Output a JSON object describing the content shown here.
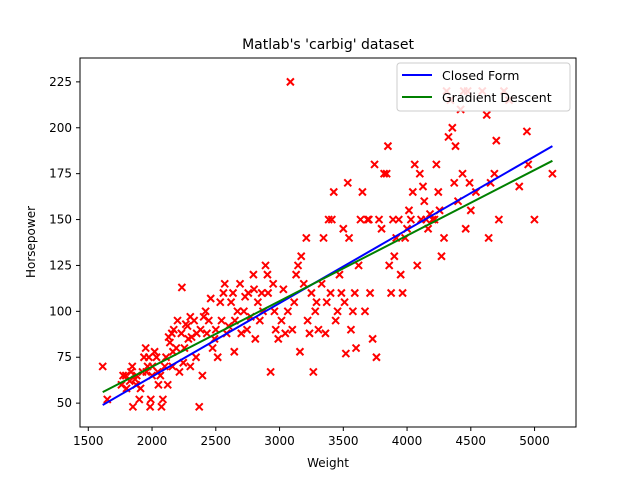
{
  "chart_data": {
    "type": "scatter",
    "title": "Matlab's 'carbig' dataset",
    "xlabel": "Weight",
    "ylabel": "Horsepower",
    "xlim": [
      1435,
      5325
    ],
    "ylim": [
      37,
      238
    ],
    "xticks": [
      1500,
      2000,
      2500,
      3000,
      3500,
      4000,
      4500,
      5000
    ],
    "yticks": [
      50,
      75,
      100,
      125,
      150,
      175,
      200,
      225
    ],
    "grid": false,
    "legend_position": "top-right",
    "colors": {
      "points": "#ff0000",
      "closed_form": "#0000ff",
      "gradient_descent": "#008000"
    },
    "series": [
      {
        "name": "Closed Form",
        "type": "line",
        "x": [
          1613,
          5140
        ],
        "y": [
          49,
          190
        ]
      },
      {
        "name": "Gradient Descent",
        "type": "line",
        "x": [
          1613,
          5140
        ],
        "y": [
          56,
          182
        ]
      },
      {
        "type": "scatter",
        "marker": "x",
        "points": [
          [
            1613,
            70
          ],
          [
            1649,
            52
          ],
          [
            1760,
            60
          ],
          [
            1773,
            65
          ],
          [
            1795,
            65
          ],
          [
            1800,
            58
          ],
          [
            1825,
            62
          ],
          [
            1835,
            67
          ],
          [
            1845,
            70
          ],
          [
            1850,
            48
          ],
          [
            1867,
            63
          ],
          [
            1875,
            60
          ],
          [
            1880,
            65
          ],
          [
            1900,
            52
          ],
          [
            1910,
            58
          ],
          [
            1925,
            67
          ],
          [
            1937,
            75
          ],
          [
            1950,
            80
          ],
          [
            1955,
            67
          ],
          [
            1965,
            70
          ],
          [
            1975,
            75
          ],
          [
            1985,
            48
          ],
          [
            1990,
            52
          ],
          [
            2000,
            65
          ],
          [
            2003,
            70
          ],
          [
            2020,
            78
          ],
          [
            2035,
            75
          ],
          [
            2045,
            67
          ],
          [
            2050,
            60
          ],
          [
            2065,
            65
          ],
          [
            2074,
            48
          ],
          [
            2085,
            52
          ],
          [
            2100,
            70
          ],
          [
            2110,
            75
          ],
          [
            2123,
            60
          ],
          [
            2130,
            86
          ],
          [
            2140,
            83
          ],
          [
            2155,
            88
          ],
          [
            2160,
            70
          ],
          [
            2164,
            78
          ],
          [
            2170,
            90
          ],
          [
            2190,
            80
          ],
          [
            2200,
            95
          ],
          [
            2215,
            67
          ],
          [
            2230,
            88
          ],
          [
            2234,
            113
          ],
          [
            2245,
            72
          ],
          [
            2254,
            80
          ],
          [
            2265,
            93
          ],
          [
            2278,
            92
          ],
          [
            2285,
            85
          ],
          [
            2300,
            97
          ],
          [
            2300,
            70
          ],
          [
            2310,
            86
          ],
          [
            2330,
            95
          ],
          [
            2345,
            75
          ],
          [
            2350,
            88
          ],
          [
            2370,
            48
          ],
          [
            2380,
            90
          ],
          [
            2395,
            65
          ],
          [
            2405,
            97
          ],
          [
            2420,
            100
          ],
          [
            2430,
            88
          ],
          [
            2445,
            95
          ],
          [
            2460,
            107
          ],
          [
            2475,
            80
          ],
          [
            2490,
            85
          ],
          [
            2500,
            90
          ],
          [
            2515,
            75
          ],
          [
            2535,
            105
          ],
          [
            2545,
            95
          ],
          [
            2560,
            110
          ],
          [
            2570,
            115
          ],
          [
            2585,
            88
          ],
          [
            2600,
            92
          ],
          [
            2620,
            105
          ],
          [
            2635,
            110
          ],
          [
            2645,
            78
          ],
          [
            2650,
            95
          ],
          [
            2670,
            100
          ],
          [
            2690,
            115
          ],
          [
            2700,
            88
          ],
          [
            2720,
            100
          ],
          [
            2730,
            108
          ],
          [
            2745,
            90
          ],
          [
            2755,
            110
          ],
          [
            2774,
            97
          ],
          [
            2795,
            120
          ],
          [
            2800,
            112
          ],
          [
            2810,
            85
          ],
          [
            2830,
            105
          ],
          [
            2845,
            95
          ],
          [
            2860,
            110
          ],
          [
            2870,
            100
          ],
          [
            2890,
            125
          ],
          [
            2905,
            120
          ],
          [
            2910,
            110
          ],
          [
            2930,
            67
          ],
          [
            2950,
            115
          ],
          [
            2960,
            100
          ],
          [
            2970,
            90
          ],
          [
            2990,
            85
          ],
          [
            3015,
            95
          ],
          [
            3030,
            112
          ],
          [
            3045,
            88
          ],
          [
            3065,
            100
          ],
          [
            3085,
            225
          ],
          [
            3100,
            90
          ],
          [
            3115,
            105
          ],
          [
            3130,
            120
          ],
          [
            3145,
            125
          ],
          [
            3160,
            78
          ],
          [
            3170,
            130
          ],
          [
            3190,
            115
          ],
          [
            3210,
            140
          ],
          [
            3220,
            95
          ],
          [
            3235,
            88
          ],
          [
            3250,
            110
          ],
          [
            3265,
            67
          ],
          [
            3280,
            100
          ],
          [
            3290,
            105
          ],
          [
            3305,
            90
          ],
          [
            3330,
            115
          ],
          [
            3345,
            140
          ],
          [
            3360,
            88
          ],
          [
            3370,
            105
          ],
          [
            3385,
            150
          ],
          [
            3400,
            110
          ],
          [
            3410,
            150
          ],
          [
            3425,
            165
          ],
          [
            3440,
            95
          ],
          [
            3455,
            100
          ],
          [
            3470,
            120
          ],
          [
            3485,
            110
          ],
          [
            3500,
            145
          ],
          [
            3510,
            105
          ],
          [
            3520,
            77
          ],
          [
            3535,
            170
          ],
          [
            3545,
            140
          ],
          [
            3560,
            90
          ],
          [
            3575,
            100
          ],
          [
            3590,
            110
          ],
          [
            3600,
            80
          ],
          [
            3620,
            125
          ],
          [
            3635,
            150
          ],
          [
            3650,
            165
          ],
          [
            3670,
            100
          ],
          [
            3690,
            150
          ],
          [
            3700,
            150
          ],
          [
            3710,
            110
          ],
          [
            3730,
            85
          ],
          [
            3745,
            180
          ],
          [
            3760,
            75
          ],
          [
            3780,
            150
          ],
          [
            3800,
            145
          ],
          [
            3820,
            175
          ],
          [
            3840,
            175
          ],
          [
            3850,
            190
          ],
          [
            3860,
            125
          ],
          [
            3875,
            110
          ],
          [
            3890,
            150
          ],
          [
            3900,
            130
          ],
          [
            3915,
            140
          ],
          [
            3935,
            150
          ],
          [
            3950,
            120
          ],
          [
            3965,
            110
          ],
          [
            3985,
            140
          ],
          [
            4000,
            145
          ],
          [
            4015,
            155
          ],
          [
            4030,
            150
          ],
          [
            4045,
            165
          ],
          [
            4060,
            180
          ],
          [
            4080,
            125
          ],
          [
            4100,
            175
          ],
          [
            4110,
            150
          ],
          [
            4125,
            168
          ],
          [
            4135,
            160
          ],
          [
            4150,
            150
          ],
          [
            4165,
            145
          ],
          [
            4180,
            153
          ],
          [
            4200,
            150
          ],
          [
            4215,
            150
          ],
          [
            4230,
            180
          ],
          [
            4245,
            165
          ],
          [
            4255,
            155
          ],
          [
            4270,
            130
          ],
          [
            4290,
            140
          ],
          [
            4310,
            220
          ],
          [
            4325,
            195
          ],
          [
            4340,
            215
          ],
          [
            4355,
            200
          ],
          [
            4370,
            170
          ],
          [
            4380,
            190
          ],
          [
            4400,
            160
          ],
          [
            4420,
            210
          ],
          [
            4435,
            175
          ],
          [
            4445,
            220
          ],
          [
            4460,
            145
          ],
          [
            4475,
            220
          ],
          [
            4490,
            170
          ],
          [
            4500,
            155
          ],
          [
            4540,
            165
          ],
          [
            4590,
            220
          ],
          [
            4625,
            207
          ],
          [
            4640,
            140
          ],
          [
            4655,
            170
          ],
          [
            4685,
            175
          ],
          [
            4700,
            193
          ],
          [
            4720,
            150
          ],
          [
            4760,
            220
          ],
          [
            4800,
            215
          ],
          [
            4880,
            168
          ],
          [
            4940,
            198
          ],
          [
            4950,
            180
          ],
          [
            4999,
            150
          ],
          [
            5140,
            175
          ]
        ]
      }
    ]
  }
}
